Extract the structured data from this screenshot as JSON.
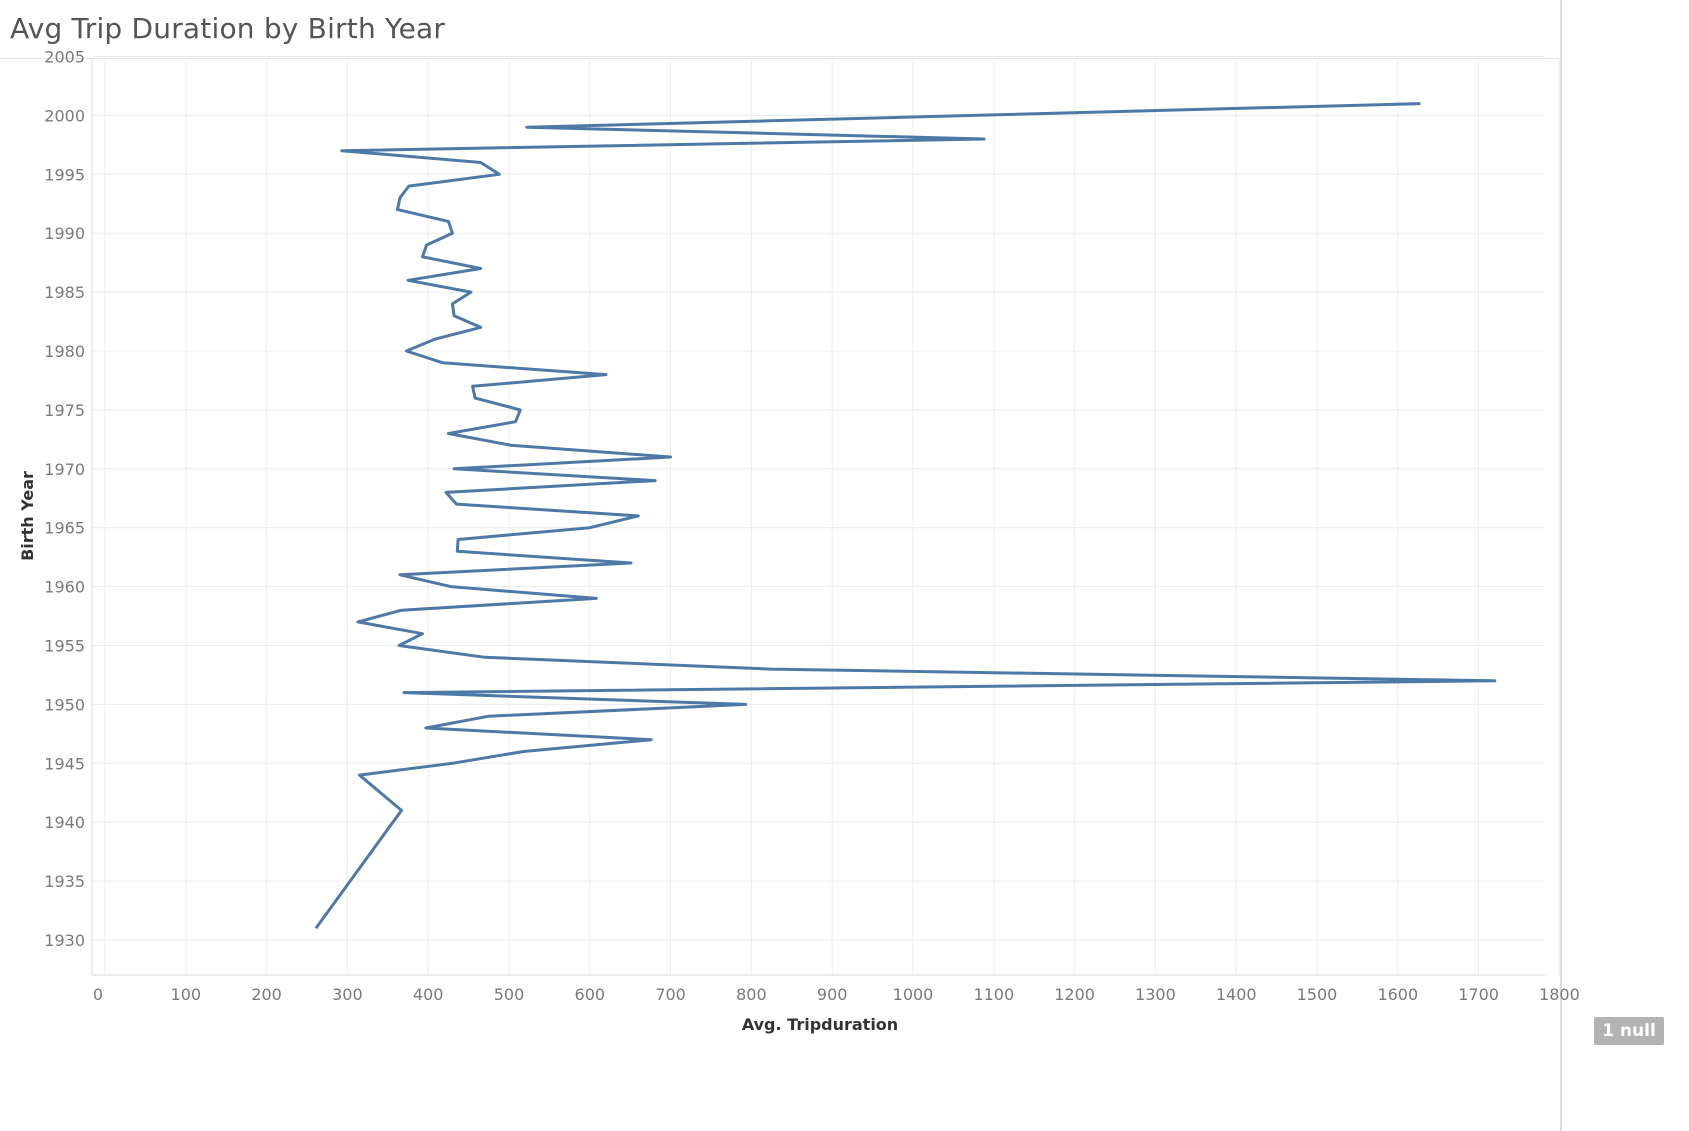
{
  "page": {
    "title": "Avg Trip Duration by Birth Year"
  },
  "null_badge": {
    "label": "1 null"
  },
  "chart_data": {
    "type": "line",
    "title": "Avg Trip Duration by Birth Year",
    "xlabel": "Avg. Tripduration",
    "ylabel": "Birth Year",
    "xlim": [
      0,
      1800
    ],
    "ylim": [
      1927,
      2005
    ],
    "x_ticks": [
      0,
      100,
      200,
      300,
      400,
      500,
      600,
      700,
      800,
      900,
      1000,
      1100,
      1200,
      1300,
      1400,
      1500,
      1600,
      1700,
      1800
    ],
    "y_ticks": [
      1930,
      1935,
      1940,
      1945,
      1950,
      1955,
      1960,
      1965,
      1970,
      1975,
      1980,
      1985,
      1990,
      1995,
      2000,
      2005
    ],
    "grid": true,
    "line_color": "#4e79a7",
    "series": [
      {
        "name": "",
        "points": [
          [
            2001,
            1628
          ],
          [
            1999,
            522
          ],
          [
            1998,
            1088
          ],
          [
            1997,
            293
          ],
          [
            1996,
            465
          ],
          [
            1995,
            488
          ],
          [
            1994,
            376
          ],
          [
            1993,
            365
          ],
          [
            1992,
            362
          ],
          [
            1991,
            425
          ],
          [
            1990,
            430
          ],
          [
            1989,
            398
          ],
          [
            1988,
            393
          ],
          [
            1987,
            465
          ],
          [
            1986,
            375
          ],
          [
            1985,
            453
          ],
          [
            1984,
            430
          ],
          [
            1983,
            432
          ],
          [
            1982,
            465
          ],
          [
            1981,
            408
          ],
          [
            1980,
            373
          ],
          [
            1979,
            418
          ],
          [
            1978,
            620
          ],
          [
            1977,
            455
          ],
          [
            1976,
            458
          ],
          [
            1975,
            514
          ],
          [
            1974,
            508
          ],
          [
            1973,
            425
          ],
          [
            1972,
            502
          ],
          [
            1971,
            700
          ],
          [
            1970,
            432
          ],
          [
            1969,
            681
          ],
          [
            1968,
            422
          ],
          [
            1967,
            435
          ],
          [
            1966,
            660
          ],
          [
            1965,
            600
          ],
          [
            1964,
            437
          ],
          [
            1963,
            436
          ],
          [
            1962,
            651
          ],
          [
            1961,
            365
          ],
          [
            1960,
            428
          ],
          [
            1959,
            608
          ],
          [
            1958,
            367
          ],
          [
            1957,
            313
          ],
          [
            1956,
            393
          ],
          [
            1955,
            364
          ],
          [
            1954,
            470
          ],
          [
            1953,
            825
          ],
          [
            1952,
            1720
          ],
          [
            1951,
            370
          ],
          [
            1950,
            793
          ],
          [
            1949,
            475
          ],
          [
            1948,
            397
          ],
          [
            1947,
            676
          ],
          [
            1946,
            518
          ],
          [
            1945,
            430
          ],
          [
            1944,
            315
          ],
          [
            1941,
            367
          ],
          [
            1931,
            261
          ]
        ]
      }
    ]
  }
}
